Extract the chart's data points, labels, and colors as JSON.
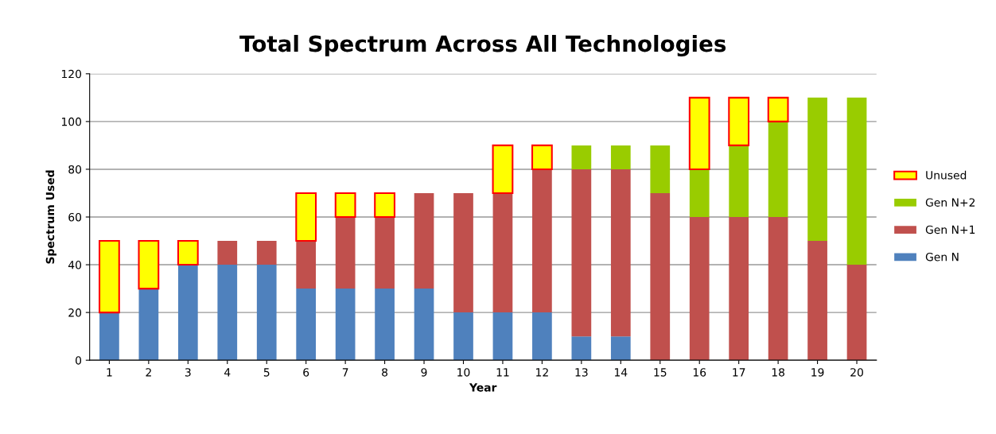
{
  "chart_data": {
    "type": "bar",
    "title": "Total Spectrum Across All Technologies",
    "xlabel": "Year",
    "ylabel": "Spectrum Used",
    "categories": [
      "1",
      "2",
      "3",
      "4",
      "5",
      "6",
      "7",
      "8",
      "9",
      "10",
      "11",
      "12",
      "13",
      "14",
      "15",
      "16",
      "17",
      "18",
      "19",
      "20"
    ],
    "stacked": true,
    "series": [
      {
        "name": "Gen N",
        "color": "#4f81bd",
        "values": [
          20,
          30,
          40,
          40,
          40,
          30,
          30,
          30,
          30,
          20,
          20,
          20,
          10,
          10,
          0,
          0,
          0,
          0,
          0,
          0
        ]
      },
      {
        "name": "Gen N+1",
        "color": "#c0504d",
        "values": [
          0,
          0,
          0,
          10,
          10,
          20,
          30,
          30,
          40,
          50,
          50,
          60,
          70,
          70,
          70,
          60,
          60,
          60,
          50,
          40
        ]
      },
      {
        "name": "Gen N+2",
        "color": "#99cc00",
        "values": [
          0,
          0,
          0,
          0,
          0,
          0,
          0,
          0,
          0,
          0,
          0,
          0,
          10,
          10,
          20,
          20,
          30,
          40,
          60,
          70
        ]
      },
      {
        "name": "Unused",
        "color": "#ffff00",
        "values": [
          30,
          20,
          10,
          0,
          0,
          20,
          10,
          10,
          0,
          0,
          20,
          10,
          0,
          0,
          0,
          30,
          20,
          10,
          0,
          0
        ]
      }
    ],
    "ylim": [
      0,
      120
    ],
    "yticks": [
      0,
      20,
      40,
      60,
      80,
      100,
      120
    ],
    "grid": "y",
    "legend": "right"
  }
}
